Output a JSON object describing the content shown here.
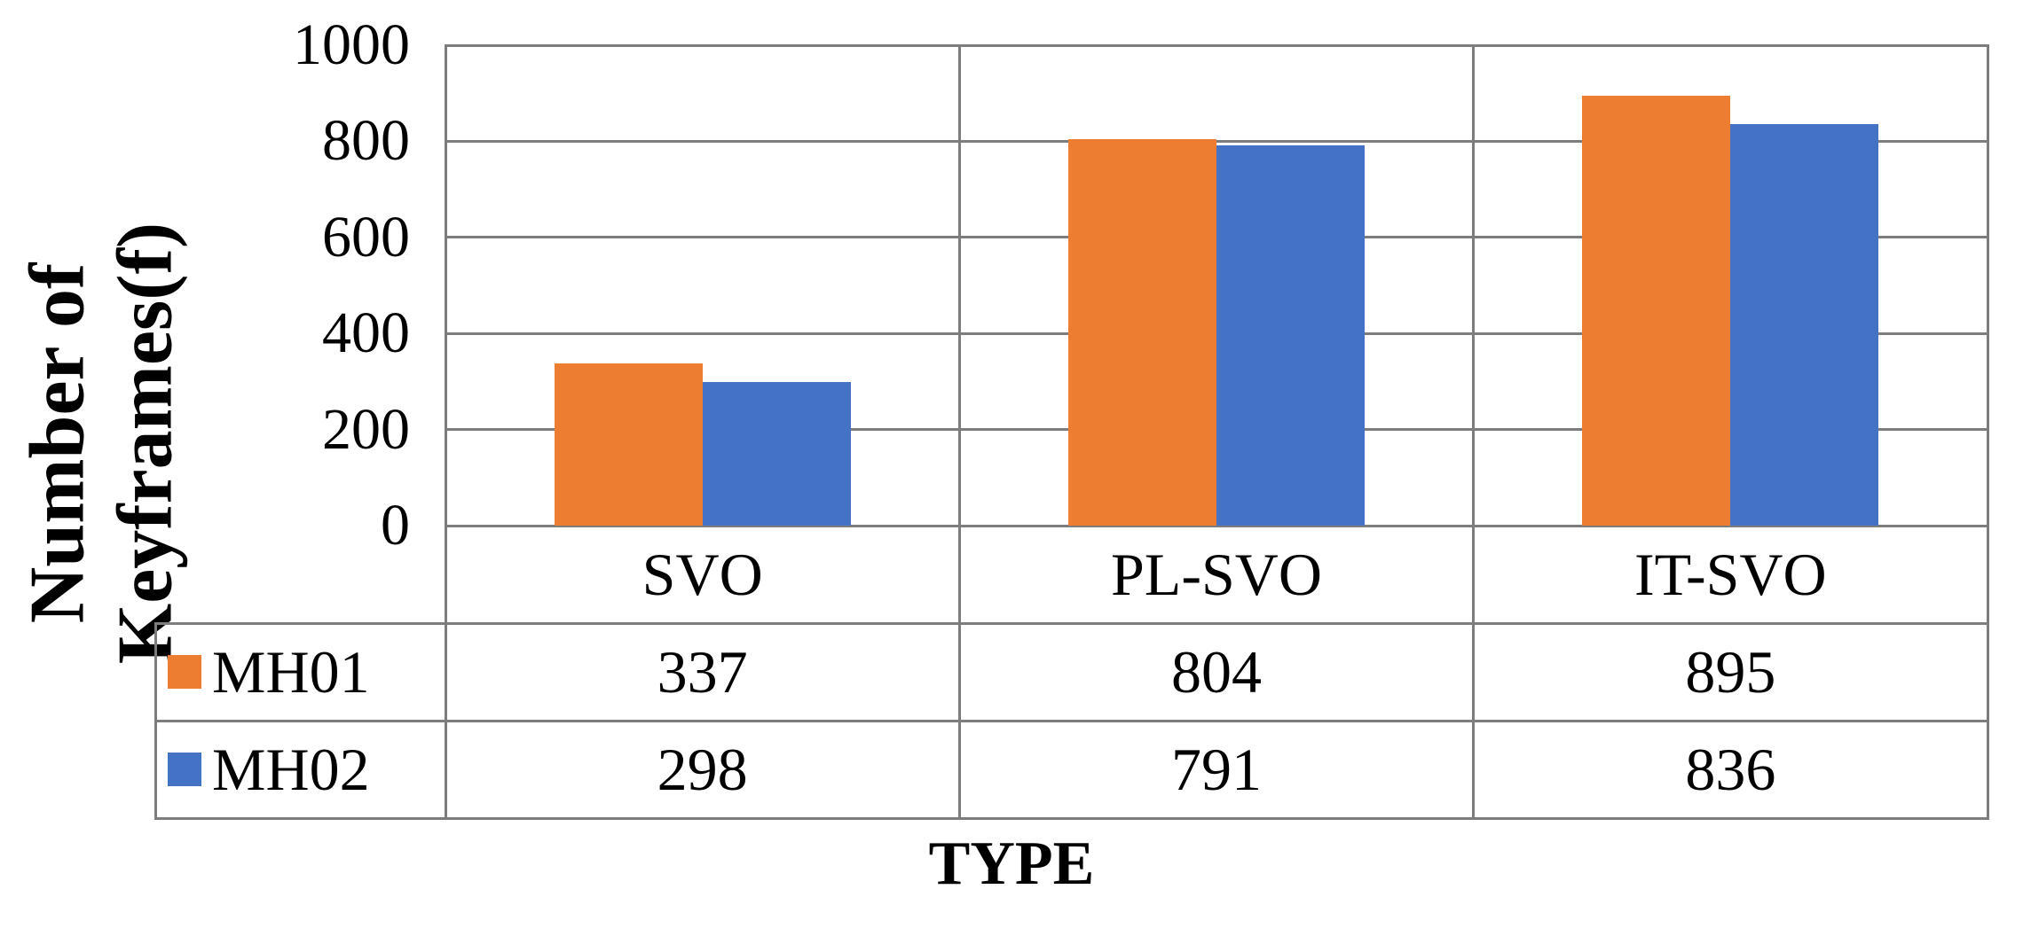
{
  "axis": {
    "y_title": "Number of Keyframes(f)",
    "y_title_lines": [
      "Number of",
      "Keyframes(f)"
    ],
    "x_title": "TYPE"
  },
  "chart_data": {
    "type": "bar",
    "title": "",
    "categories": [
      "SVO",
      "PL-SVO",
      "IT-SVO"
    ],
    "series": [
      {
        "name": "MH01",
        "color": "#ED7D31",
        "values": [
          337,
          804,
          895
        ]
      },
      {
        "name": "MH02",
        "color": "#4472C4",
        "values": [
          298,
          791,
          836
        ]
      }
    ],
    "xlabel": "TYPE",
    "ylabel": "Number of Keyframes(f)",
    "ylim": [
      0,
      1000
    ],
    "yticks": [
      0,
      200,
      400,
      600,
      800,
      1000
    ],
    "grid": true,
    "gridline_color": "#7d7d7d",
    "legend_position": "data-table-left"
  }
}
